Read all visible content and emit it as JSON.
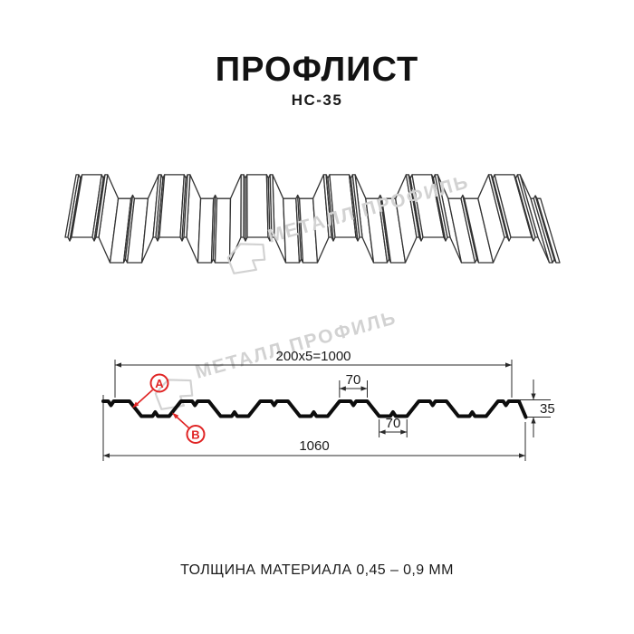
{
  "header": {
    "title": "ПРОФЛИСТ",
    "subtitle": "НС-35"
  },
  "watermark": {
    "text": "МЕТАЛЛ ПРОФИЛЬ",
    "color": "#d2d2d2"
  },
  "cross_section": {
    "dim_top": "200x5=1000",
    "dim_rib_top": "70",
    "dim_rib_bottom": "70",
    "dim_overall": "1060",
    "dim_height": "35",
    "callout_a": "A",
    "callout_b": "B"
  },
  "footer": {
    "thickness_note": "ТОЛЩИНА МАТЕРИАЛА 0,45 – 0,9 ММ"
  },
  "colors": {
    "accent_red": "#e02424",
    "line_dark": "#1a1a1a",
    "watermark_gray": "#d2d2d2"
  }
}
